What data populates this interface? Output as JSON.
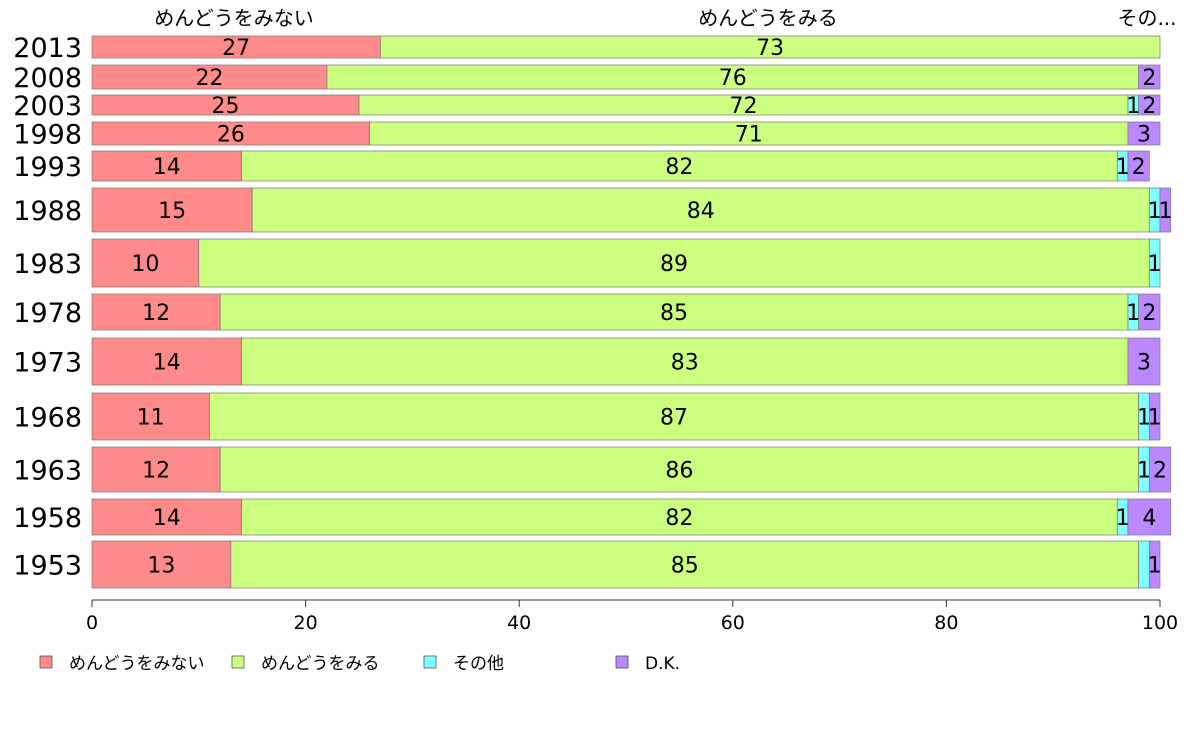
{
  "chart_data": {
    "type": "bar",
    "orientation": "horizontal",
    "stacked": true,
    "bar_width": "proportional to sample size",
    "xlim": [
      0,
      100
    ],
    "x_ticks": [
      "0",
      "20",
      "40",
      "60",
      "80",
      "100"
    ],
    "grid": false,
    "legend_position": "bottom",
    "categories": [
      "2013",
      "2008",
      "2003",
      "1998",
      "1993",
      "1988",
      "1983",
      "1978",
      "1973",
      "1968",
      "1963",
      "1958",
      "1953"
    ],
    "top_labels": [
      "めんどうをみない",
      "めんどうをみる",
      "その..."
    ],
    "series": [
      {
        "name": "めんどうをみない",
        "color": "#ff8a8a",
        "values": [
          27,
          22,
          25,
          26,
          14,
          15,
          10,
          12,
          14,
          11,
          12,
          14,
          13
        ]
      },
      {
        "name": "めんどうをみる",
        "color": "#ccff80",
        "values": [
          73,
          76,
          72,
          71,
          82,
          84,
          89,
          85,
          83,
          87,
          86,
          82,
          85
        ]
      },
      {
        "name": "その他",
        "color": "#80ffff",
        "values": [
          0,
          0,
          1,
          0,
          1,
          1,
          1,
          1,
          0,
          1,
          1,
          1,
          1
        ]
      },
      {
        "name": "D.K.",
        "color": "#bb88ff",
        "values": [
          0,
          2,
          2,
          3,
          2,
          1,
          0,
          2,
          3,
          1,
          2,
          4,
          1
        ]
      }
    ],
    "data_labels": [
      [
        "27",
        "73",
        "",
        ""
      ],
      [
        "22",
        "76",
        "",
        "2"
      ],
      [
        "25",
        "72",
        "1",
        "2"
      ],
      [
        "26",
        "71",
        "",
        "3"
      ],
      [
        "14",
        "82",
        "1",
        "2"
      ],
      [
        "15",
        "84",
        "1",
        "1"
      ],
      [
        "10",
        "89",
        "1",
        ""
      ],
      [
        "12",
        "85",
        "1",
        "2"
      ],
      [
        "14",
        "83",
        "",
        "3"
      ],
      [
        "11",
        "87",
        "1",
        "1"
      ],
      [
        "12",
        "86",
        "1",
        "2"
      ],
      [
        "14",
        "82",
        "1",
        "4"
      ],
      [
        "13",
        "85",
        "",
        "1"
      ]
    ]
  }
}
